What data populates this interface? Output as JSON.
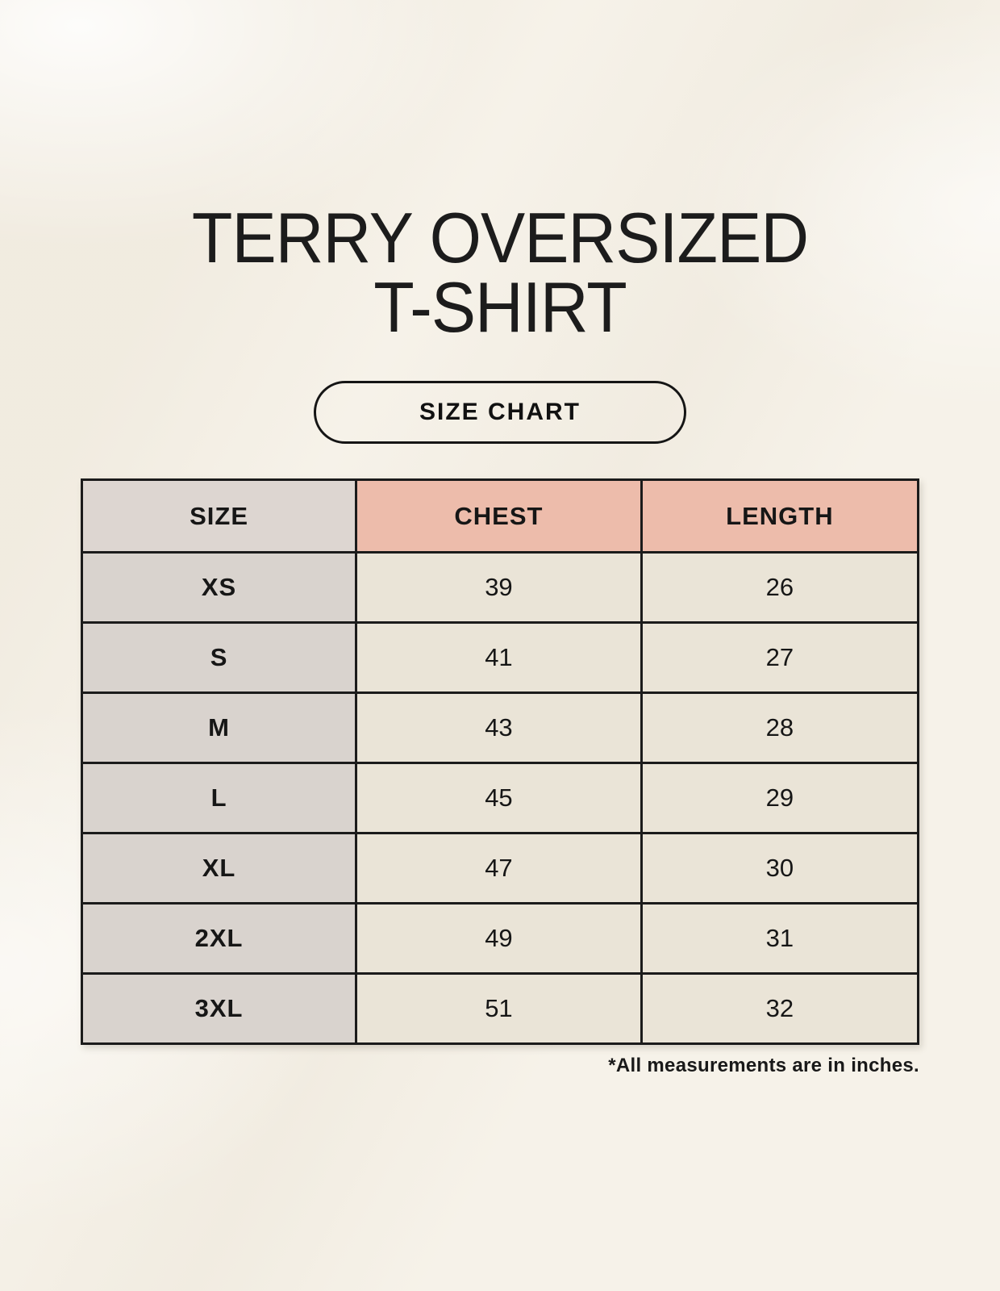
{
  "header": {
    "title_line1": "TERRY OVERSIZED",
    "title_line2": "T-SHIRT",
    "button_label": "SIZE CHART"
  },
  "chart_data": {
    "type": "table",
    "title": "TERRY OVERSIZED T-SHIRT",
    "columns": [
      "SIZE",
      "CHEST",
      "LENGTH"
    ],
    "rows": [
      [
        "XS",
        "39",
        "26"
      ],
      [
        "S",
        "41",
        "27"
      ],
      [
        "M",
        "43",
        "28"
      ],
      [
        "L",
        "45",
        "29"
      ],
      [
        "XL",
        "47",
        "30"
      ],
      [
        "2XL",
        "49",
        "31"
      ],
      [
        "3XL",
        "51",
        "32"
      ]
    ],
    "units": "inches",
    "footnote": "*All measurements are in inches."
  },
  "colors": {
    "background": "#f6f2e9",
    "header_accent": "#edbcab",
    "header_size_bg": "#ddd6d1",
    "size_col_bg": "#d9d3ce",
    "cell_bg": "#eae4d7",
    "border": "#1b1b1b",
    "text": "#161616"
  }
}
